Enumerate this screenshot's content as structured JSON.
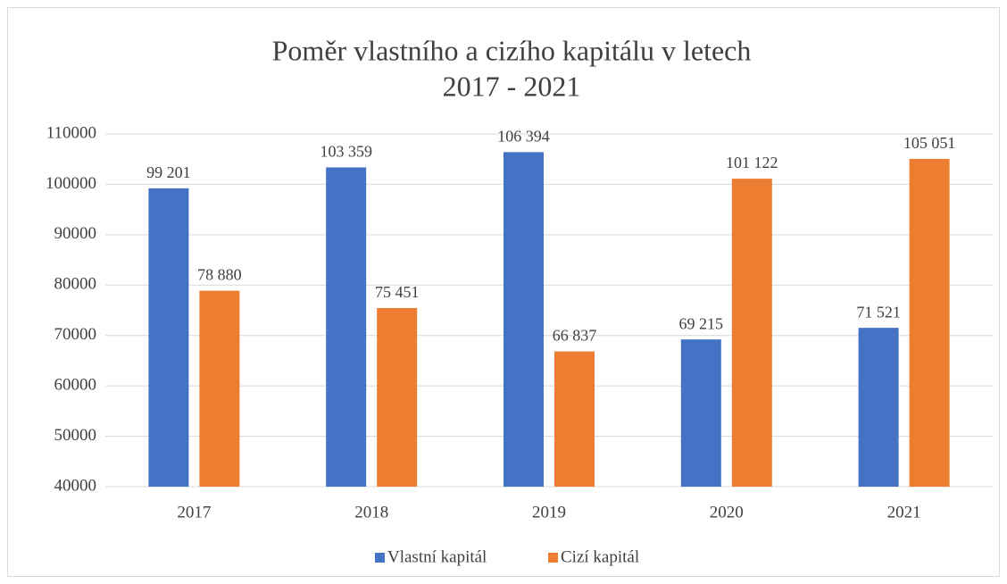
{
  "chart_data": {
    "type": "bar",
    "title": [
      "Poměr vlastního a cizího kapitálu v letech",
      "2017 - 2021"
    ],
    "categories": [
      "2017",
      "2018",
      "2019",
      "2020",
      "2021"
    ],
    "series": [
      {
        "name": "Vlastní kapitál",
        "color": "#4472c4",
        "values": [
          99201,
          103359,
          106394,
          69215,
          71521
        ],
        "value_labels": [
          "99 201",
          "103 359",
          "106 394",
          "69 215",
          "71 521"
        ]
      },
      {
        "name": "Cizí kapitál",
        "color": "#ed7d31",
        "values": [
          78880,
          75451,
          66837,
          101122,
          105051
        ],
        "value_labels": [
          "78 880",
          "75 451",
          "66 837",
          "101 122",
          "105 051"
        ]
      }
    ],
    "ylim": [
      40000,
      110000
    ],
    "yticks": [
      40000,
      50000,
      60000,
      70000,
      80000,
      90000,
      100000,
      110000
    ],
    "grid": true,
    "legend": "bottom"
  }
}
